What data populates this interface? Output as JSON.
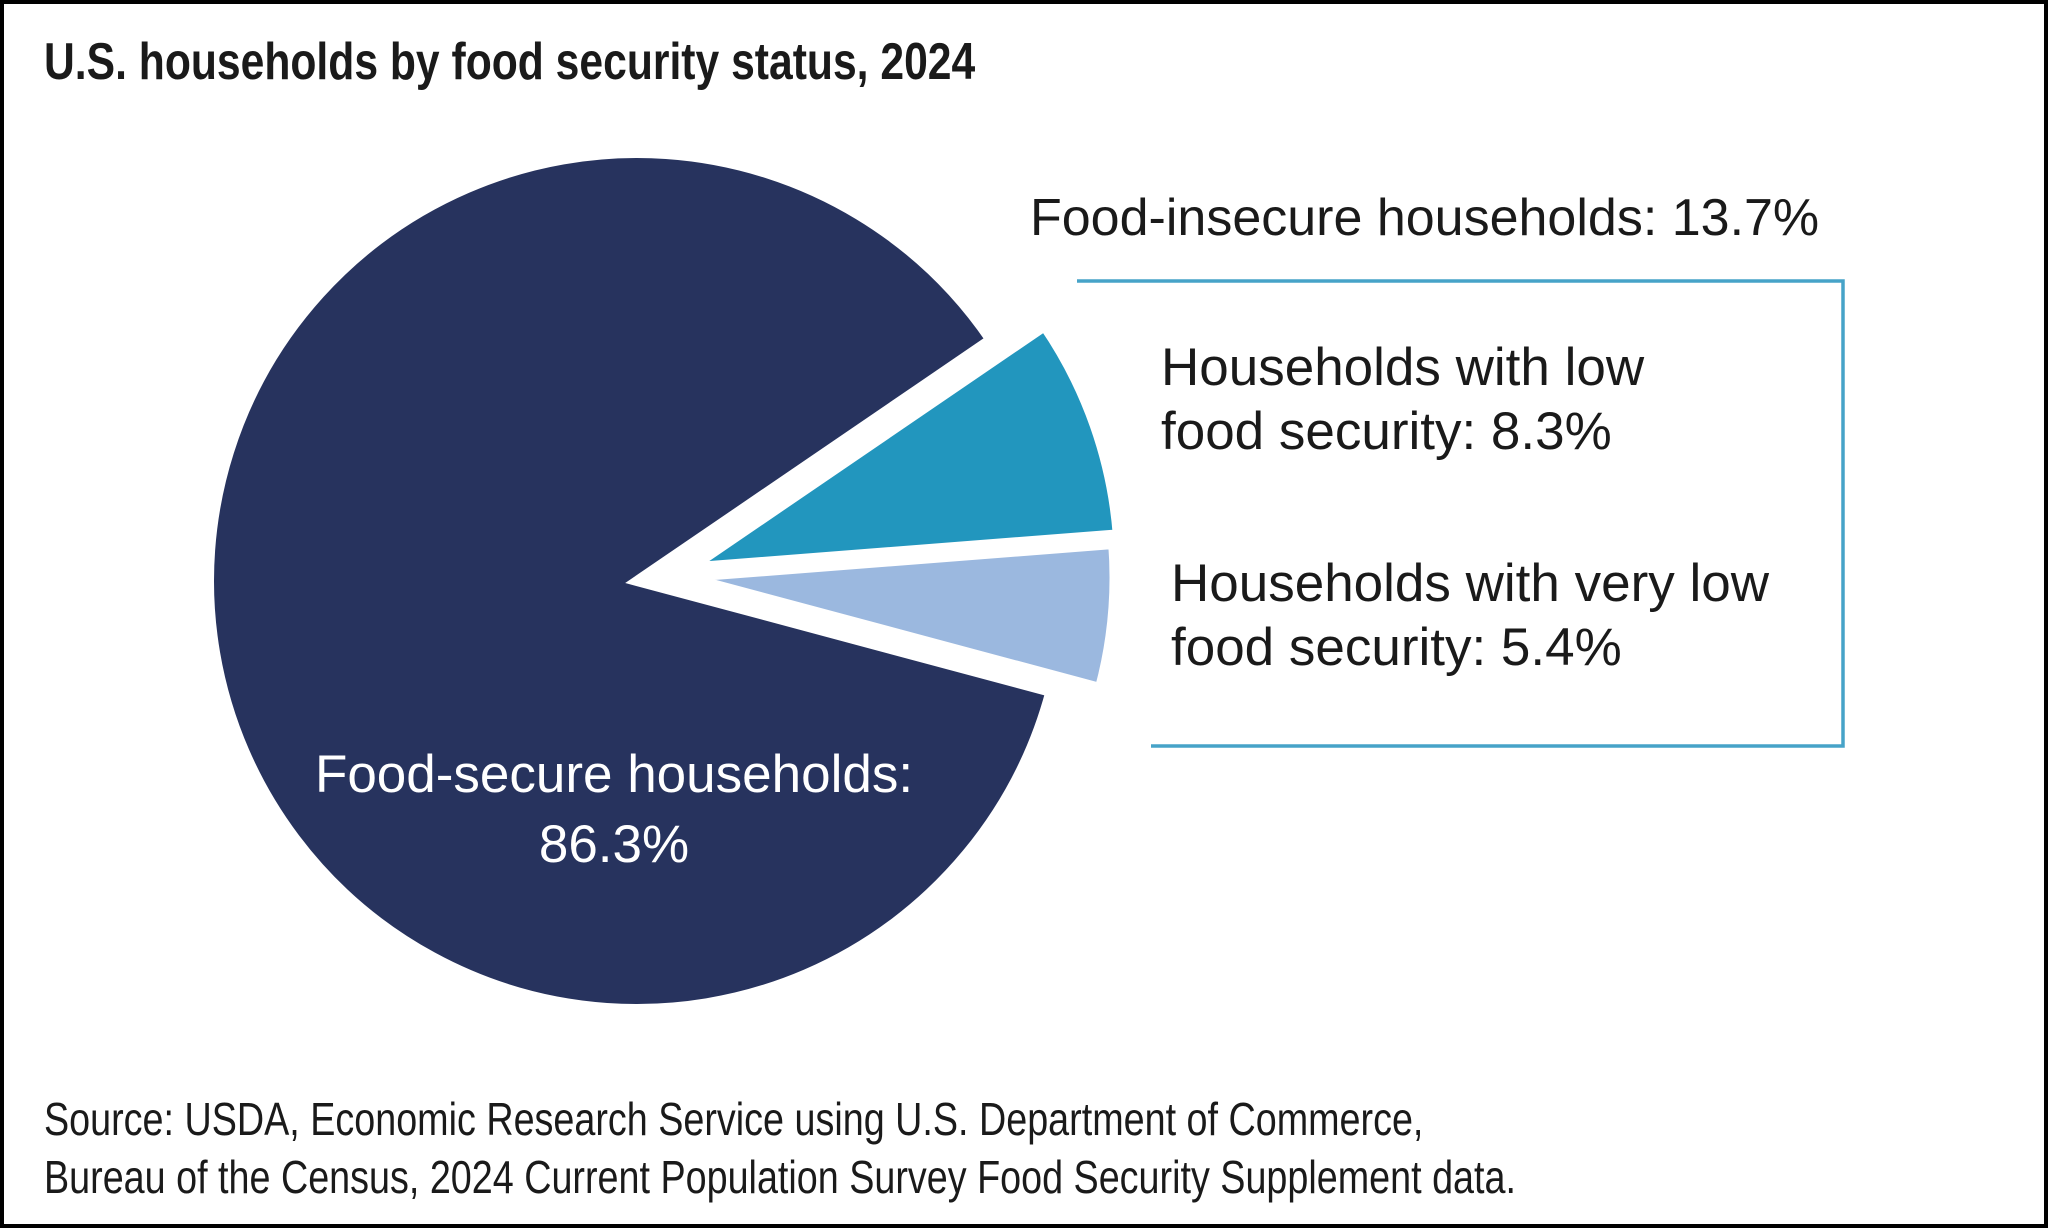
{
  "title": "U.S. households by food security status, 2024",
  "chart_data": {
    "type": "pie",
    "title": "U.S. households by food security status, 2024",
    "units": "%",
    "legend_position": "right-annotations",
    "slices": [
      {
        "id": "food-secure",
        "label": "Food-secure households",
        "value": 86.3,
        "color": "#27335E",
        "exploded": false
      },
      {
        "id": "low-food-security",
        "label": "Households with low food security",
        "value": 8.3,
        "color": "#2296BE",
        "exploded": true
      },
      {
        "id": "very-low-food-security",
        "label": "Households with very low food security",
        "value": 5.4,
        "color": "#9BB8DF",
        "exploded": true
      }
    ],
    "group_annotation": {
      "label": "Food-insecure households",
      "value": 13.7
    }
  },
  "pie_label": {
    "line1": "Food-secure households:",
    "line2": "86.3%"
  },
  "annotations": {
    "group": "Food-insecure households: 13.7%",
    "low_line1": "Households with low",
    "low_line2": "food security: 8.3%",
    "very_low_line1": "Households with very low",
    "very_low_line2": "food security: 5.4%"
  },
  "source": {
    "line1": "Source: USDA, Economic Research Service using U.S. Department of Commerce,",
    "line2": "Bureau of the Census, 2024 Current Population Survey Food Security Supplement data."
  },
  "colors": {
    "dark_navy": "#27335E",
    "teal": "#2296BE",
    "light_blue": "#9BB8DF",
    "bracket": "#46A3C8",
    "text": "#1A1A1A",
    "pie_label_text": "#FFFFFF",
    "background": "#FFFFFF",
    "frame": "#000000"
  }
}
